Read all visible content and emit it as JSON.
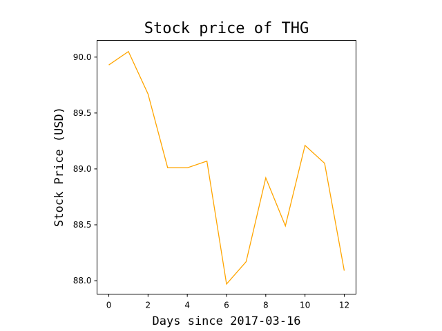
{
  "chart_data": {
    "type": "line",
    "title": "Stock price of THG",
    "xlabel": "Days since 2017-03-16",
    "ylabel": "Stock Price (USD)",
    "x": [
      0,
      1,
      2,
      3,
      4,
      5,
      6,
      7,
      8,
      9,
      10,
      11,
      12
    ],
    "series": [
      {
        "values": [
          89.93,
          90.05,
          89.67,
          89.01,
          89.01,
          89.07,
          87.97,
          88.17,
          88.92,
          88.49,
          89.21,
          89.05,
          88.09
        ],
        "color": "#ffa500"
      }
    ],
    "xlim": [
      -0.6,
      12.6
    ],
    "ylim": [
      87.88,
      90.15
    ],
    "xticks": [
      "0",
      "2",
      "4",
      "6",
      "8",
      "10",
      "12"
    ],
    "yticks": [
      "88.0",
      "88.5",
      "89.0",
      "89.5",
      "90.0"
    ],
    "grid": false
  }
}
